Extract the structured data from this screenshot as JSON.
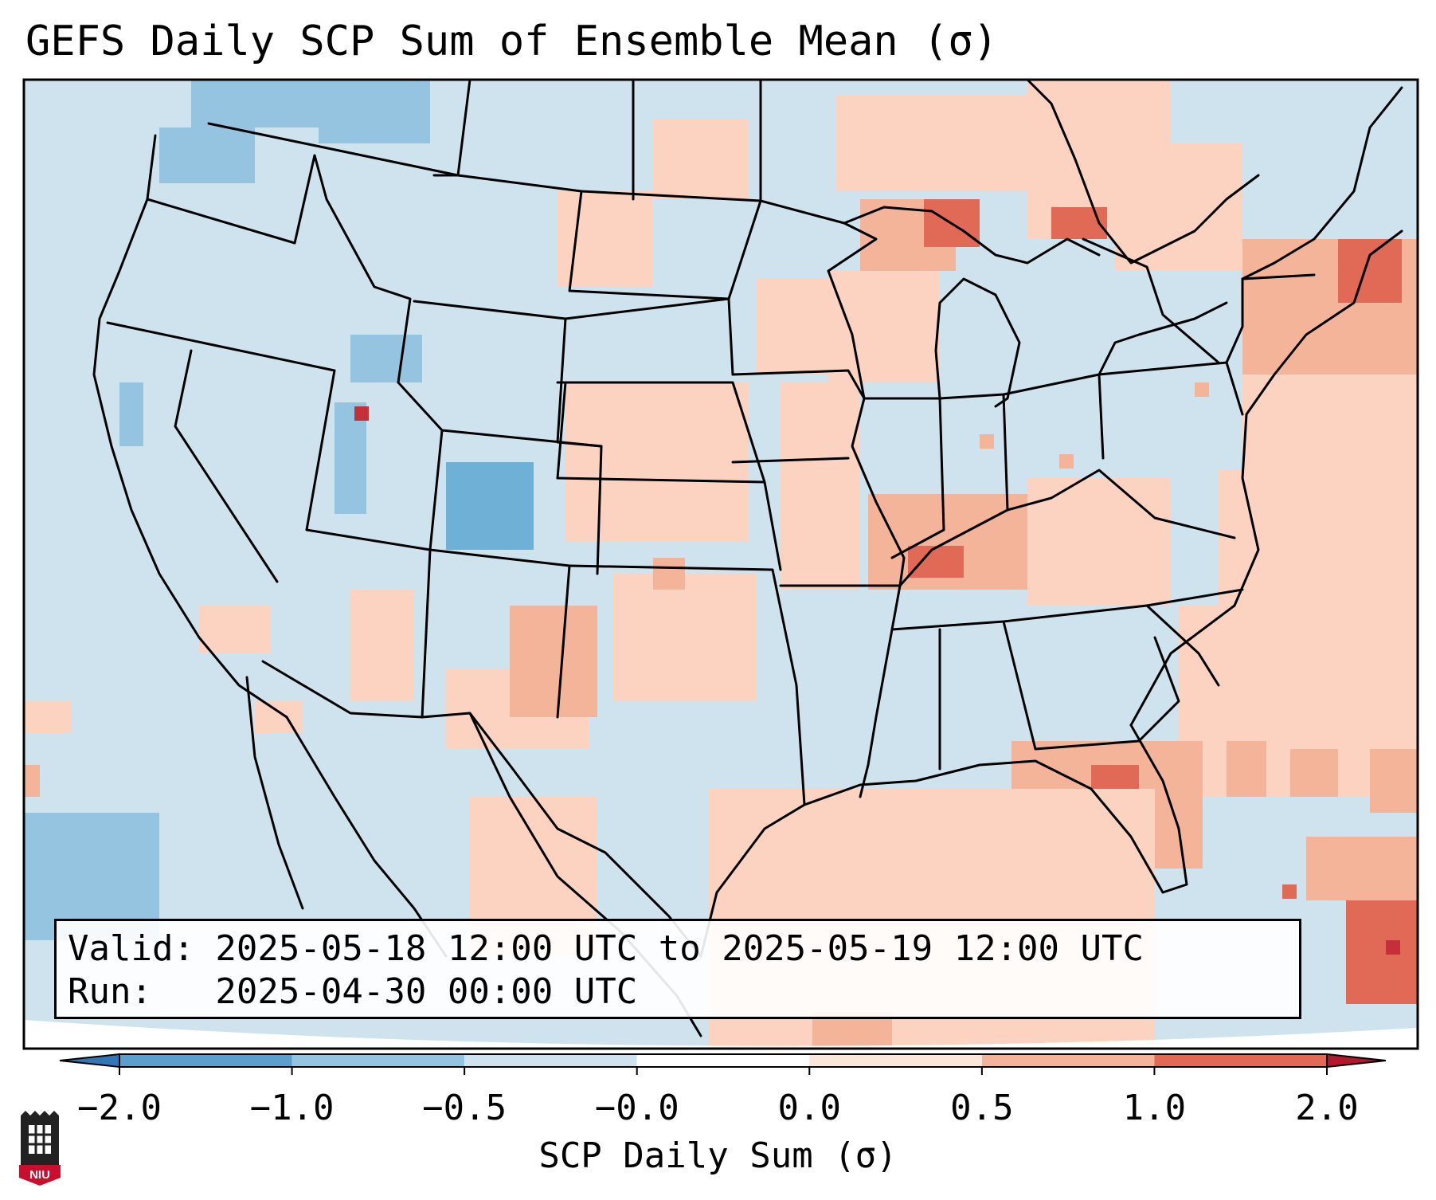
{
  "title": "GEFS Daily SCP Sum of Ensemble Mean (σ)",
  "info": {
    "valid": "Valid: 2025-05-18 12:00 UTC to 2025-05-19 12:00 UTC",
    "run": "Run:   2025-04-30 00:00 UTC"
  },
  "colorbar": {
    "label": "SCP Daily Sum (σ)",
    "ticks": [
      "−2.0",
      "−1.0",
      "−0.5",
      "−0.0",
      "0.0",
      "0.5",
      "1.0",
      "2.0"
    ],
    "colors": [
      "#2f78b5",
      "#5d9fcc",
      "#94c4df",
      "#cfe3ef",
      "#fbe6da",
      "#f3b49a",
      "#e06a56",
      "#b2172b"
    ],
    "extend": "both"
  },
  "map": {
    "region": "Continental United States",
    "background_color": "#cfe3ef",
    "anomaly_colors": {
      "strong_negative": "#6fb0d6",
      "negative": "#94c4df",
      "weak_negative": "#cfe3ef",
      "weak_positive": "#fbd3c0",
      "positive": "#f3b49a",
      "strong_positive": "#e06a56",
      "extreme_positive": "#c3303a"
    }
  },
  "logo": {
    "text": "NIU"
  }
}
